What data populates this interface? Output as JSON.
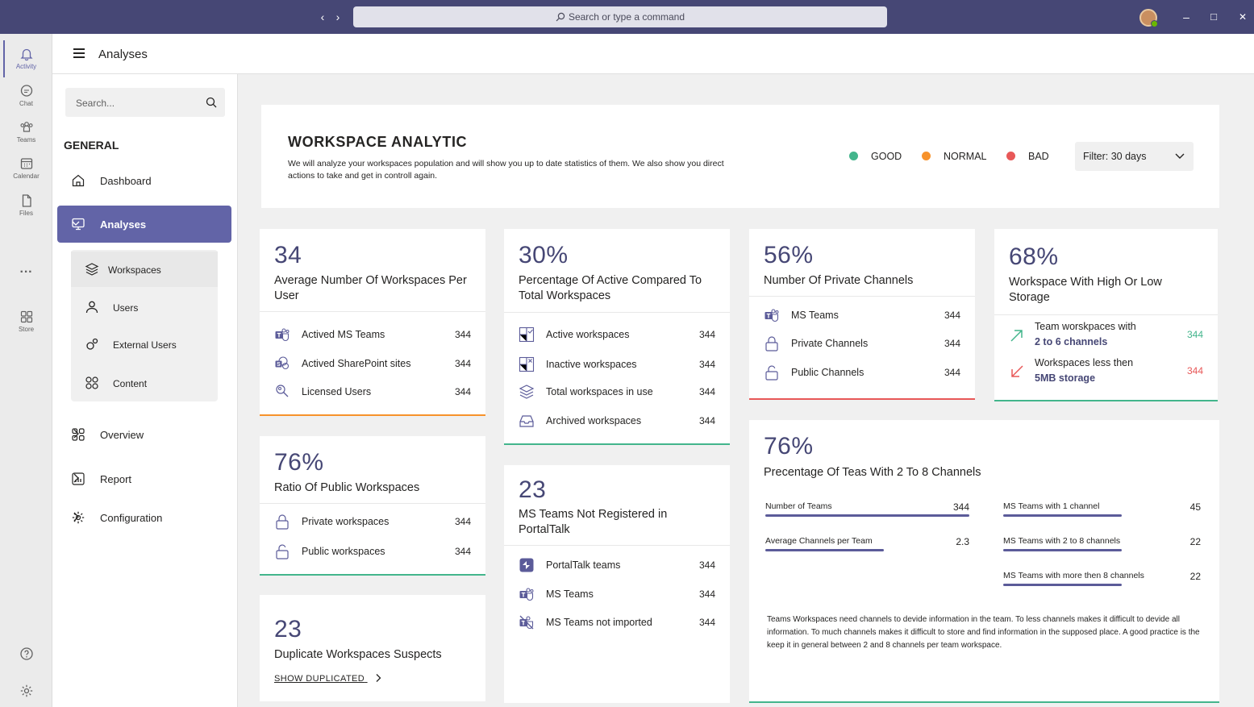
{
  "titlebar": {
    "search_placeholder": "Search or type a command",
    "nav_back": "‹",
    "nav_forward": "›",
    "minimize": "–",
    "maximize": "□",
    "close": "✕"
  },
  "rail": {
    "items": [
      {
        "label": "Activity",
        "icon": "bell-icon"
      },
      {
        "label": "Chat",
        "icon": "chat-icon"
      },
      {
        "label": "Teams",
        "icon": "teams-icon"
      },
      {
        "label": "Calendar",
        "icon": "calendar-icon"
      },
      {
        "label": "Files",
        "icon": "file-icon"
      },
      {
        "label": "Store",
        "icon": "store-icon"
      }
    ],
    "more": "···"
  },
  "header": {
    "title": "Analyses"
  },
  "sidebar": {
    "search_placeholder": "Search...",
    "section_heading": "GENERAL",
    "nav": {
      "dashboard": "Dashboard",
      "analyses": "Analyses",
      "overview": "Overview",
      "report": "Report",
      "configuration": "Configuration"
    },
    "sub": {
      "workspaces": "Workspaces",
      "users": "Users",
      "external_users": "External Users",
      "content": "Content"
    }
  },
  "hero": {
    "title": "WORKSPACE ANALYTIC",
    "description": "We will analyze your workspaces population and will show you up to date statistics of them. We also show you direct actions to take and get in controll again.",
    "legend": [
      {
        "label": "GOOD",
        "color": "#43b58c"
      },
      {
        "label": "NORMAL",
        "color": "#f7922b"
      },
      {
        "label": "BAD",
        "color": "#e85858"
      }
    ],
    "filter": "Filter: 30 days"
  },
  "cards": {
    "avg_workspaces": {
      "stat": "34",
      "title": "Average Number Of Workspaces Per User",
      "rows": [
        {
          "label": "Actived MS Teams",
          "value": "344"
        },
        {
          "label": "Actived SharePoint sites",
          "value": "344"
        },
        {
          "label": "Licensed Users",
          "value": "344"
        }
      ]
    },
    "active_pct": {
      "stat": "30%",
      "title": "Percentage Of Active Compared To Total Workspaces",
      "rows": [
        {
          "label": "Active workspaces",
          "value": "344"
        },
        {
          "label": "Inactive workspaces",
          "value": "344"
        },
        {
          "label": "Total workspaces in use",
          "value": "344"
        },
        {
          "label": "Archived workspaces",
          "value": "344"
        }
      ]
    },
    "private_channels": {
      "stat": "56%",
      "title": "Number Of Private Channels",
      "rows": [
        {
          "label": "MS Teams",
          "value": "344"
        },
        {
          "label": "Private Channels",
          "value": "344"
        },
        {
          "label": "Public Channels",
          "value": "344"
        }
      ]
    },
    "storage": {
      "stat": "68%",
      "title": "Workspace With High Or Low Storage",
      "rows": [
        {
          "label": "Team worskpaces with",
          "link": "2 to 6 channels",
          "value": "344"
        },
        {
          "label": "Workspaces less then",
          "link": "5MB storage",
          "value": "344"
        }
      ]
    },
    "public_ratio": {
      "stat": "76%",
      "title": "Ratio Of Public Workspaces",
      "rows": [
        {
          "label": "Private workspaces",
          "value": "344"
        },
        {
          "label": "Public workspaces",
          "value": "344"
        }
      ]
    },
    "not_registered": {
      "stat": "23",
      "title": "MS Teams Not Registered in PortalTalk",
      "rows": [
        {
          "label": "PortalTalk teams",
          "value": "344"
        },
        {
          "label": "MS Teams",
          "value": "344"
        },
        {
          "label": "MS Teams not imported",
          "value": "344"
        }
      ]
    },
    "duplicates": {
      "stat": "23",
      "title": "Duplicate Workspaces Suspects",
      "link": "SHOW DUPLICATED"
    },
    "channels": {
      "stat": "76%",
      "title": "Precentage Of Teas With 2 To 8 Channels",
      "left": [
        {
          "label": "Number of Teams",
          "value": "344",
          "fill": 1.0
        },
        {
          "label": "Average Channels per Team",
          "value": "2.3",
          "fill": 0.58
        }
      ],
      "right": [
        {
          "label": "MS Teams with 1 channel",
          "value": "45",
          "fill": 0.6
        },
        {
          "label": "MS Teams with 2 to 8 channels",
          "value": "22",
          "fill": 0.6
        },
        {
          "label": "MS Teams with more then 8 channels",
          "value": "22",
          "fill": 0.6
        }
      ],
      "note": "Teams Workspaces need channels to devide information in the team. To less channels makes it difficult to devide all information. To much channels makes it difficult to store and find information in the supposed place. A good practice is the keep it in general between 2 and 8 channels per team workspace."
    }
  }
}
